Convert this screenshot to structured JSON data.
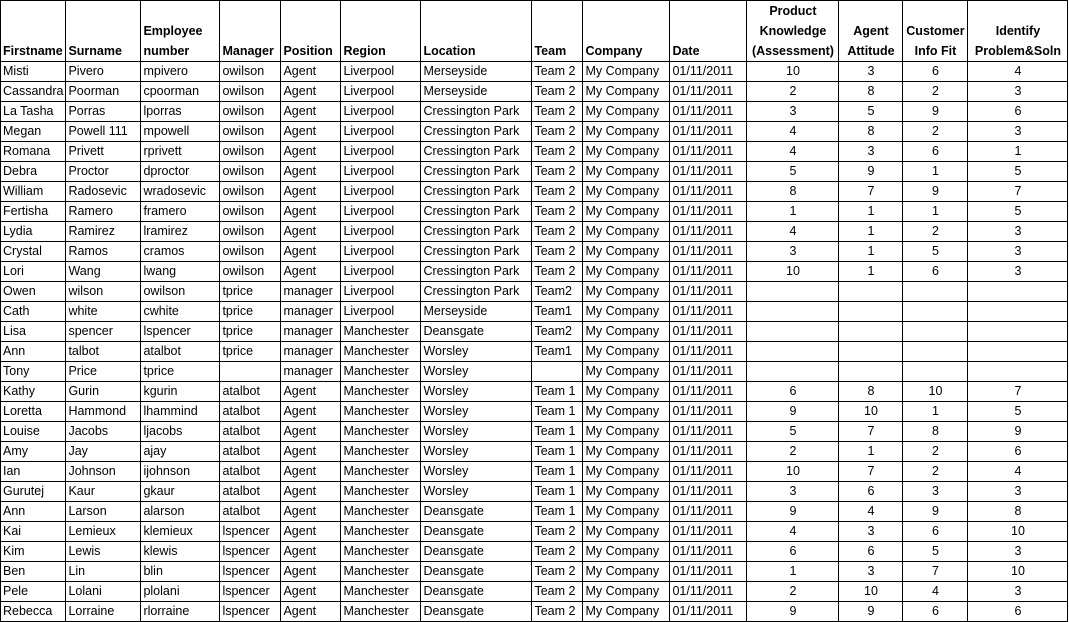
{
  "headers": [
    "Firstname",
    "Surname",
    "Employee number",
    "Manager",
    "Position",
    "Region",
    "Location",
    "Team",
    "Company",
    "Date",
    "Product Knowledge (Assessment)",
    "Agent Attitude",
    "Customer Info Fit",
    "Identify Problem&Soln"
  ],
  "rows": [
    [
      "Misti",
      "Pivero",
      "mpivero",
      "owilson",
      "Agent",
      "Liverpool",
      "Merseyside",
      "Team 2",
      "My Company",
      "01/11/2011",
      "10",
      "3",
      "6",
      "4"
    ],
    [
      "Cassandra",
      "Poorman",
      "cpoorman",
      "owilson",
      "Agent",
      "Liverpool",
      "Merseyside",
      "Team 2",
      "My Company",
      "01/11/2011",
      "2",
      "8",
      "2",
      "3"
    ],
    [
      "La Tasha",
      "Porras",
      "lporras",
      "owilson",
      "Agent",
      "Liverpool",
      "Cressington Park",
      "Team 2",
      "My Company",
      "01/11/2011",
      "3",
      "5",
      "9",
      "6"
    ],
    [
      "Megan",
      "Powell 111",
      "mpowell",
      "owilson",
      "Agent",
      "Liverpool",
      "Cressington Park",
      "Team 2",
      "My Company",
      "01/11/2011",
      "4",
      "8",
      "2",
      "3"
    ],
    [
      "Romana",
      "Privett",
      "rprivett",
      "owilson",
      "Agent",
      "Liverpool",
      "Cressington Park",
      "Team 2",
      "My Company",
      "01/11/2011",
      "4",
      "3",
      "6",
      "1"
    ],
    [
      "Debra",
      "Proctor",
      "dproctor",
      "owilson",
      "Agent",
      "Liverpool",
      "Cressington Park",
      "Team 2",
      "My Company",
      "01/11/2011",
      "5",
      "9",
      "1",
      "5"
    ],
    [
      "William",
      "Radosevic",
      "wradosevic",
      "owilson",
      "Agent",
      "Liverpool",
      "Cressington Park",
      "Team 2",
      "My Company",
      "01/11/2011",
      "8",
      "7",
      "9",
      "7"
    ],
    [
      "Fertisha",
      "Ramero",
      "framero",
      "owilson",
      "Agent",
      "Liverpool",
      "Cressington Park",
      "Team 2",
      "My Company",
      "01/11/2011",
      "1",
      "1",
      "1",
      "5"
    ],
    [
      "Lydia",
      "Ramirez",
      "lramirez",
      "owilson",
      "Agent",
      "Liverpool",
      "Cressington Park",
      "Team 2",
      "My Company",
      "01/11/2011",
      "4",
      "1",
      "2",
      "3"
    ],
    [
      "Crystal",
      "Ramos",
      "cramos",
      "owilson",
      "Agent",
      "Liverpool",
      "Cressington Park",
      "Team 2",
      "My Company",
      "01/11/2011",
      "3",
      "1",
      "5",
      "3"
    ],
    [
      "Lori",
      "Wang",
      "lwang",
      "owilson",
      "Agent",
      "Liverpool",
      "Cressington Park",
      "Team 2",
      "My Company",
      "01/11/2011",
      "10",
      "1",
      "6",
      "3"
    ],
    [
      "Owen",
      "wilson",
      "owilson",
      "tprice",
      "manager",
      "Liverpool",
      "Cressington Park",
      "Team2",
      "My Company",
      "01/11/2011",
      "",
      "",
      "",
      ""
    ],
    [
      "Cath",
      "white",
      "cwhite",
      "tprice",
      "manager",
      "Liverpool",
      "Merseyside",
      "Team1",
      "My Company",
      "01/11/2011",
      "",
      "",
      "",
      ""
    ],
    [
      "Lisa",
      "spencer",
      "lspencer",
      "tprice",
      "manager",
      "Manchester",
      "Deansgate",
      "Team2",
      "My Company",
      "01/11/2011",
      "",
      "",
      "",
      ""
    ],
    [
      "Ann",
      "talbot",
      "atalbot",
      "tprice",
      "manager",
      "Manchester",
      "Worsley",
      "Team1",
      "My Company",
      "01/11/2011",
      "",
      "",
      "",
      ""
    ],
    [
      "Tony",
      "Price",
      "tprice",
      "",
      "manager",
      "Manchester",
      "Worsley",
      "",
      "My Company",
      "01/11/2011",
      "",
      "",
      "",
      ""
    ],
    [
      "Kathy",
      "Gurin",
      "kgurin",
      "atalbot",
      "Agent",
      "Manchester",
      "Worsley",
      "Team 1",
      "My Company",
      "01/11/2011",
      "6",
      "8",
      "10",
      "7"
    ],
    [
      "Loretta",
      "Hammond",
      "lhammind",
      "atalbot",
      "Agent",
      "Manchester",
      "Worsley",
      "Team 1",
      "My Company",
      "01/11/2011",
      "9",
      "10",
      "1",
      "5"
    ],
    [
      "Louise",
      "Jacobs",
      "ljacobs",
      "atalbot",
      "Agent",
      "Manchester",
      "Worsley",
      "Team 1",
      "My Company",
      "01/11/2011",
      "5",
      "7",
      "8",
      "9"
    ],
    [
      "Amy",
      "Jay",
      "ajay",
      "atalbot",
      "Agent",
      "Manchester",
      "Worsley",
      "Team 1",
      "My Company",
      "01/11/2011",
      "2",
      "1",
      "2",
      "6"
    ],
    [
      "Ian",
      "Johnson",
      "ijohnson",
      "atalbot",
      "Agent",
      "Manchester",
      "Worsley",
      "Team 1",
      "My Company",
      "01/11/2011",
      "10",
      "7",
      "2",
      "4"
    ],
    [
      "Gurutej",
      "Kaur",
      "gkaur",
      "atalbot",
      "Agent",
      "Manchester",
      "Worsley",
      "Team 1",
      "My Company",
      "01/11/2011",
      "3",
      "6",
      "3",
      "3"
    ],
    [
      "Ann",
      "Larson",
      "alarson",
      "atalbot",
      "Agent",
      "Manchester",
      "Deansgate",
      "Team 1",
      "My Company",
      "01/11/2011",
      "9",
      "4",
      "9",
      "8"
    ],
    [
      "Kai",
      "Lemieux",
      "klemieux",
      "lspencer",
      "Agent",
      "Manchester",
      "Deansgate",
      "Team 2",
      "My Company",
      "01/11/2011",
      "4",
      "3",
      "6",
      "10"
    ],
    [
      "Kim",
      "Lewis",
      "klewis",
      "lspencer",
      "Agent",
      "Manchester",
      "Deansgate",
      "Team 2",
      "My Company",
      "01/11/2011",
      "6",
      "6",
      "5",
      "3"
    ],
    [
      "Ben",
      "Lin",
      "blin",
      "lspencer",
      "Agent",
      "Manchester",
      "Deansgate",
      "Team 2",
      "My Company",
      "01/11/2011",
      "1",
      "3",
      "7",
      "10"
    ],
    [
      "Pele",
      "Lolani",
      "plolani",
      "lspencer",
      "Agent",
      "Manchester",
      "Deansgate",
      "Team 2",
      "My Company",
      "01/11/2011",
      "2",
      "10",
      "4",
      "3"
    ],
    [
      "Rebecca",
      "Lorraine",
      "rlorraine",
      "lspencer",
      "Agent",
      "Manchester",
      "Deansgate",
      "Team 2",
      "My Company",
      "01/11/2011",
      "9",
      "9",
      "6",
      "6"
    ]
  ]
}
